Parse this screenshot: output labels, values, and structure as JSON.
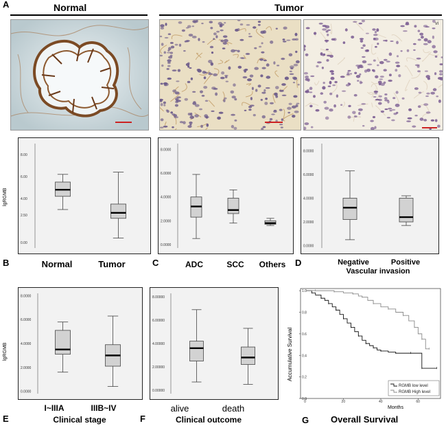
{
  "panel_a": {
    "letter": "A",
    "normal_label": "Normal",
    "tumor_label": "Tumor",
    "image_marks": {
      "tumor2_corner": "vi"
    }
  },
  "panel_b": {
    "letter": "B",
    "ylabel": "lgRGMB",
    "ticks": [
      "8.00",
      "6.00",
      "4.00",
      "2.50",
      "0.00"
    ],
    "categories": [
      "Normal",
      "Tumor"
    ]
  },
  "panel_c": {
    "letter": "C",
    "ticks": [
      "8.0000",
      "6.0000",
      "4.0000",
      "2.0000",
      "0.0000"
    ],
    "categories": [
      "ADC",
      "SCC",
      "Others"
    ]
  },
  "panel_d": {
    "letter": "D",
    "ticks": [
      "8.0000",
      "6.0000",
      "4.0000",
      "2.0000",
      "0.0000"
    ],
    "categories": [
      "Negative",
      "Positive"
    ],
    "xlabel": "Vascular invasion"
  },
  "panel_e": {
    "letter": "E",
    "ylabel": "lgRGMB",
    "ticks": [
      "8.0000",
      "6.0000",
      "4.0000",
      "2.0000",
      "0.0000"
    ],
    "categories": [
      "I~IIIA",
      "IIIB~IV"
    ],
    "xlabel": "Clinical stage"
  },
  "panel_f": {
    "letter": "F",
    "ticks": [
      "8.00000",
      "6.00000",
      "4.00000",
      "2.00000",
      "0.00000"
    ],
    "categories": [
      "alive",
      "death"
    ],
    "xlabel": "Clinical outcome"
  },
  "panel_g": {
    "letter": "G",
    "ylabel": "Accumulative Survival",
    "xlabel": "Months",
    "title": "Overall Survival",
    "yticks": [
      "1.0",
      "0.8",
      "0.6",
      "0.4",
      "0.2",
      "0.0"
    ],
    "xticks": [
      "0",
      "20",
      "40",
      "60"
    ],
    "legend": [
      "RGMB low level",
      "RGMB High level"
    ]
  },
  "chart_data": [
    {
      "type": "box",
      "ylim": [
        -0.5,
        9.0
      ],
      "categories": [
        "Normal",
        "Tumor"
      ],
      "boxes": [
        {
          "whislo": 3.0,
          "q1": 4.2,
          "med": 4.8,
          "q3": 5.5,
          "whishi": 6.2
        },
        {
          "whislo": 0.4,
          "q1": 2.2,
          "med": 2.7,
          "q3": 3.5,
          "whishi": 6.4
        }
      ]
    },
    {
      "type": "box",
      "ylim": [
        -0.3,
        8.5
      ],
      "categories": [
        "ADC",
        "SCC",
        "Others"
      ],
      "boxes": [
        {
          "whislo": 0.5,
          "q1": 2.3,
          "med": 3.2,
          "q3": 4.0,
          "whishi": 5.9
        },
        {
          "whislo": 1.8,
          "q1": 2.6,
          "med": 2.9,
          "q3": 3.9,
          "whishi": 4.6
        },
        {
          "whislo": 1.6,
          "q1": 1.7,
          "med": 1.8,
          "q3": 2.0,
          "whishi": 2.2
        }
      ]
    },
    {
      "type": "box",
      "ylim": [
        -0.2,
        8.6
      ],
      "categories": [
        "Negative",
        "Positive"
      ],
      "boxes": [
        {
          "whislo": 0.5,
          "q1": 2.2,
          "med": 3.2,
          "q3": 4.0,
          "whishi": 6.3
        },
        {
          "whislo": 1.7,
          "q1": 2.0,
          "med": 2.4,
          "q3": 4.0,
          "whishi": 4.2
        }
      ]
    },
    {
      "type": "box",
      "ylim": [
        -0.2,
        8.2
      ],
      "categories": [
        "I~IIIA",
        "IIIB~IV"
      ],
      "boxes": [
        {
          "whislo": 1.6,
          "q1": 3.1,
          "med": 3.5,
          "q3": 5.1,
          "whishi": 5.8
        },
        {
          "whislo": 0.4,
          "q1": 2.1,
          "med": 3.0,
          "q3": 3.9,
          "whishi": 6.3
        }
      ]
    },
    {
      "type": "box",
      "ylim": [
        -0.3,
        8.3
      ],
      "categories": [
        "alive",
        "death"
      ],
      "boxes": [
        {
          "whislo": 0.7,
          "q1": 2.5,
          "med": 3.6,
          "q3": 4.2,
          "whishi": 6.9
        },
        {
          "whislo": 0.5,
          "q1": 2.2,
          "med": 2.8,
          "q3": 3.7,
          "whishi": 5.3
        }
      ]
    },
    {
      "type": "line",
      "xlim": [
        -3,
        72
      ],
      "ylim": [
        0,
        1.02
      ],
      "series": [
        {
          "name": "RGMB low level",
          "color": "#111111",
          "x": [
            0,
            3,
            5,
            8,
            10,
            12,
            14,
            16,
            18,
            20,
            22,
            24,
            26,
            28,
            30,
            32,
            34,
            36,
            38,
            40,
            44,
            48,
            52,
            56,
            60,
            62,
            66,
            70
          ],
          "y": [
            1.0,
            0.98,
            0.96,
            0.93,
            0.91,
            0.88,
            0.85,
            0.82,
            0.78,
            0.74,
            0.7,
            0.66,
            0.62,
            0.58,
            0.54,
            0.51,
            0.49,
            0.47,
            0.45,
            0.44,
            0.43,
            0.42,
            0.42,
            0.42,
            0.42,
            0.28,
            0.28,
            0.28
          ]
        },
        {
          "name": "RGMB High level",
          "color": "#888888",
          "x": [
            0,
            5,
            10,
            15,
            20,
            25,
            28,
            30,
            33,
            36,
            40,
            44,
            48,
            52,
            55,
            58,
            60,
            62,
            64,
            66
          ],
          "y": [
            1.0,
            1.0,
            1.0,
            0.99,
            0.98,
            0.97,
            0.95,
            0.94,
            0.91,
            0.88,
            0.85,
            0.83,
            0.8,
            0.77,
            0.72,
            0.66,
            0.6,
            0.55,
            0.46,
            0.46
          ]
        }
      ]
    }
  ]
}
